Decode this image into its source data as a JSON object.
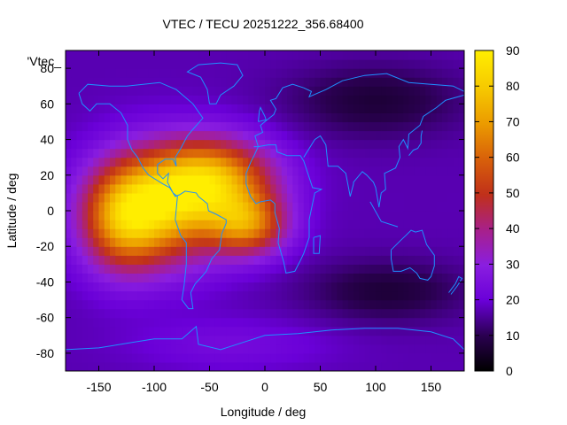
{
  "chart_data": {
    "type": "heatmap",
    "title": "VTEC / TECU 20251222_356.68400",
    "xlabel": "Longitude / deg",
    "ylabel": "Latitude / deg",
    "legend_key": "'Vtec_",
    "xlim": [
      -180,
      180
    ],
    "ylim": [
      -90,
      90
    ],
    "x_ticks": [
      "-150",
      "-100",
      "-50",
      "0",
      "50",
      "100",
      "150"
    ],
    "x_tick_values": [
      -150,
      -100,
      -50,
      0,
      50,
      100,
      150
    ],
    "y_ticks": [
      "-80",
      "-60",
      "-40",
      "-20",
      "0",
      "20",
      "40",
      "60",
      "80"
    ],
    "y_tick_values": [
      -80,
      -60,
      -40,
      -20,
      0,
      20,
      40,
      60,
      80
    ],
    "colorbar": {
      "range": [
        0,
        90
      ],
      "ticks": [
        "0",
        "10",
        "20",
        "30",
        "40",
        "50",
        "60",
        "70",
        "80",
        "90"
      ],
      "tick_values": [
        0,
        10,
        20,
        30,
        40,
        50,
        60,
        70,
        80,
        90
      ],
      "palette": "black-purple-red-orange-yellow"
    },
    "grid": false,
    "coastline_color": "#1e90ff",
    "vtec_peaks": [
      {
        "lon": -95,
        "lat": 2,
        "value": 70,
        "spread_lon": 40,
        "spread_lat": 22
      },
      {
        "lon": -45,
        "lat": 18,
        "value": 66,
        "spread_lon": 38,
        "spread_lat": 16
      },
      {
        "lon": -15,
        "lat": -8,
        "value": 58,
        "spread_lon": 25,
        "spread_lat": 12
      },
      {
        "lon": -130,
        "lat": -5,
        "value": 50,
        "spread_lon": 25,
        "spread_lat": 20
      }
    ],
    "background_vtec": 17,
    "low_region_vtec": 7
  }
}
